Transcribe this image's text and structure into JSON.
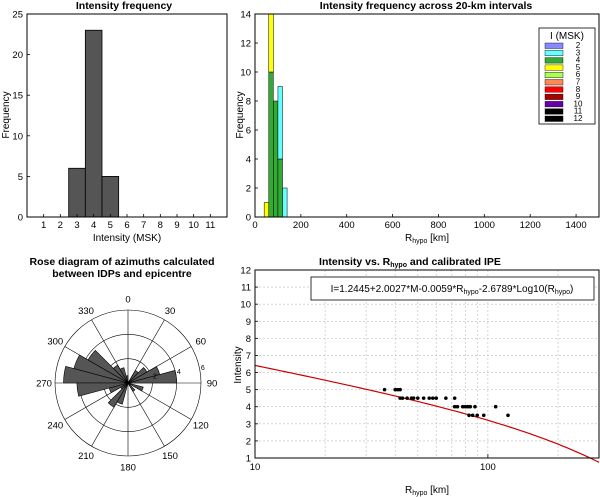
{
  "chart_data": [
    {
      "id": "p1",
      "type": "bar",
      "title": "Intensity frequency",
      "xlabel": "Intensity (MSK)",
      "ylabel": "Frequency",
      "xlim": [
        0,
        12
      ],
      "ylim": [
        0,
        25
      ],
      "xticks": [
        "1",
        "2",
        "3",
        "4",
        "5",
        "6",
        "7",
        "8",
        "9",
        "10",
        "11"
      ],
      "yticks": [
        "0",
        "5",
        "10",
        "15",
        "20",
        "25"
      ],
      "categories": [
        "3",
        "4",
        "5"
      ],
      "values": [
        6,
        23,
        5
      ],
      "bar_color": "#555555"
    },
    {
      "id": "p2",
      "type": "bar",
      "title": "Intensity frequency across 20-km intervals",
      "xlabel_main": "R",
      "xlabel_sub": "hypo",
      "xlabel_unit": " [km]",
      "ylabel": "Frequency",
      "xlim": [
        0,
        1500
      ],
      "ylim": [
        0,
        14
      ],
      "xticks": [
        "0",
        "200",
        "400",
        "600",
        "800",
        "1000",
        "1200",
        "1400"
      ],
      "yticks": [
        "0",
        "2",
        "4",
        "6",
        "8",
        "10",
        "12",
        "14"
      ],
      "legend": {
        "title": "I (MSK)",
        "placement": "top-right",
        "entries": [
          {
            "label": "2",
            "color": "#8888ff"
          },
          {
            "label": "3",
            "color": "#66ffff"
          },
          {
            "label": "4",
            "color": "#33aa33"
          },
          {
            "label": "5",
            "color": "#ffff00"
          },
          {
            "label": "6",
            "color": "#aaff55"
          },
          {
            "label": "7",
            "color": "#ff8855"
          },
          {
            "label": "8",
            "color": "#ff0000"
          },
          {
            "label": "9",
            "color": "#aa0000"
          },
          {
            "label": "10",
            "color": "#6600aa"
          },
          {
            "label": "11",
            "color": "#000000"
          },
          {
            "label": "12",
            "color": "#000000"
          }
        ]
      },
      "bars": [
        {
          "x0": 40,
          "x1": 60,
          "segments": [
            {
              "i": "5",
              "v": 1
            }
          ]
        },
        {
          "x0": 60,
          "x1": 80,
          "segments": [
            {
              "i": "4",
              "v": 10
            },
            {
              "i": "5",
              "v": 4
            }
          ]
        },
        {
          "x0": 80,
          "x1": 100,
          "segments": [
            {
              "i": "4",
              "v": 8
            }
          ]
        },
        {
          "x0": 100,
          "x1": 120,
          "segments": [
            {
              "i": "4",
              "v": 4
            },
            {
              "i": "3",
              "v": 5
            }
          ]
        },
        {
          "x0": 120,
          "x1": 140,
          "segments": [
            {
              "i": "3",
              "v": 2
            }
          ]
        }
      ]
    },
    {
      "id": "p3",
      "type": "rose",
      "title_line1": "Rose diagram of azimuths calculated",
      "title_line2": "between  IDPs and epicentre",
      "angle_labels": [
        {
          "deg": 0,
          "label": "0"
        },
        {
          "deg": 30,
          "label": "30"
        },
        {
          "deg": 60,
          "label": "60"
        },
        {
          "deg": 90,
          "label": "90"
        },
        {
          "deg": 120,
          "label": "120"
        },
        {
          "deg": 150,
          "label": "150"
        },
        {
          "deg": 180,
          "label": "180"
        },
        {
          "deg": 210,
          "label": "210"
        },
        {
          "deg": 240,
          "label": "240"
        },
        {
          "deg": 270,
          "label": "270"
        },
        {
          "deg": 300,
          "label": "300"
        },
        {
          "deg": 330,
          "label": "330"
        }
      ],
      "rmax": 6,
      "radial_ticks": [
        "2",
        "4",
        "6"
      ],
      "bin_width_deg": 15,
      "bins": [
        {
          "center": 277.5,
          "r": 5.3
        },
        {
          "center": 292.5,
          "r": 4.6
        },
        {
          "center": 307.5,
          "r": 3.8
        },
        {
          "center": 322.5,
          "r": 1.7
        },
        {
          "center": 337.5,
          "r": 1.3
        },
        {
          "center": 352.5,
          "r": 0.6
        },
        {
          "center": 37.5,
          "r": 1.2
        },
        {
          "center": 52.5,
          "r": 1.8
        },
        {
          "center": 67.5,
          "r": 2.7
        },
        {
          "center": 82.5,
          "r": 4.0
        },
        {
          "center": 112.5,
          "r": 1.3
        },
        {
          "center": 142.5,
          "r": 0.8
        },
        {
          "center": 202.5,
          "r": 1.8
        },
        {
          "center": 217.5,
          "r": 2.3
        },
        {
          "center": 232.5,
          "r": 0.7
        },
        {
          "center": 247.5,
          "r": 1.6
        },
        {
          "center": 262.5,
          "r": 4.2
        }
      ],
      "wedge_color": "#555555"
    },
    {
      "id": "p4",
      "type": "scatter",
      "title_main": "Intensity vs. R",
      "title_sub": "hypo",
      "title_end": " and calibrated IPE",
      "xlabel_main": "R",
      "xlabel_sub": "hypo",
      "xlabel_unit": " [km]",
      "ylabel": "Intensity",
      "xscale": "log",
      "xlim": [
        10,
        300
      ],
      "ylim": [
        1,
        12
      ],
      "xticks": [
        {
          "v": 10,
          "label": "10"
        },
        {
          "v": 100,
          "label": "100"
        }
      ],
      "yticks": [
        "1",
        "2",
        "3",
        "4",
        "5",
        "6",
        "7",
        "8",
        "9",
        "10",
        "11",
        "12"
      ],
      "grid": true,
      "equation": {
        "p1": "I=1.2445+2.0027*M-0.0059*R",
        "s1": "hypo",
        "p2": "-2.6789*Log10(R",
        "s2": "hypo",
        "p3": ")"
      },
      "ipe": {
        "a": 1.2445,
        "b": 2.0027,
        "M": 3.95,
        "c": -0.0059,
        "d": -2.6789
      },
      "line_color": "#cc0000",
      "points": [
        [
          36,
          5.0
        ],
        [
          40,
          5.0
        ],
        [
          41,
          5.0
        ],
        [
          42,
          5.0
        ],
        [
          42,
          4.5
        ],
        [
          43,
          4.5
        ],
        [
          45,
          4.5
        ],
        [
          47,
          4.5
        ],
        [
          48,
          4.5
        ],
        [
          50,
          4.5
        ],
        [
          53,
          4.5
        ],
        [
          56,
          4.5
        ],
        [
          58,
          4.5
        ],
        [
          60,
          4.5
        ],
        [
          66,
          4.5
        ],
        [
          72,
          4.0
        ],
        [
          72,
          4.5
        ],
        [
          74,
          4.0
        ],
        [
          78,
          4.0
        ],
        [
          80,
          4.0
        ],
        [
          82,
          4.0
        ],
        [
          83,
          3.5
        ],
        [
          84,
          4.0
        ],
        [
          86,
          3.5
        ],
        [
          88,
          4.0
        ],
        [
          90,
          3.5
        ],
        [
          96,
          3.5
        ],
        [
          108,
          4.0
        ],
        [
          122,
          3.5
        ]
      ]
    }
  ]
}
